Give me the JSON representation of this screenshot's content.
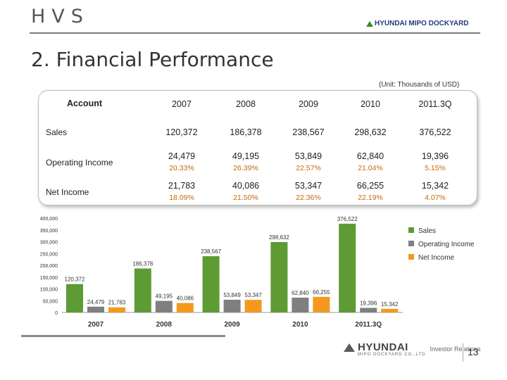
{
  "header": {
    "brand": "HVS",
    "company_logo": "HYUNDAI MIPO DOCKYARD"
  },
  "slide": {
    "title": "2. Financial Performance",
    "unit": "(Unit: Thousands of USD)",
    "page_number": "13"
  },
  "table": {
    "account_header": "Account",
    "years": [
      "2007",
      "2008",
      "2009",
      "2010",
      "2011.3Q"
    ],
    "rows": [
      {
        "label": "Sales",
        "values": [
          "120,372",
          "186,378",
          "238,567",
          "298,632",
          "376,522"
        ]
      },
      {
        "label": "Operating Income",
        "values": [
          "24,479",
          "49,195",
          "53,849",
          "62,840",
          "19,396"
        ],
        "margins": [
          "20.33%",
          "26.39%",
          "22.57%",
          "21.04%",
          "5.15%"
        ]
      },
      {
        "label": "Net Income",
        "values": [
          "21,783",
          "40,086",
          "53,347",
          "66,255",
          "15,342"
        ],
        "margins": [
          "18.09%",
          "21.50%",
          "22.36%",
          "22.19%",
          "4.07%"
        ]
      }
    ]
  },
  "chart_data": {
    "type": "bar",
    "title": "",
    "categories": [
      "2007",
      "2008",
      "2009",
      "2010",
      "2011.3Q"
    ],
    "series": [
      {
        "name": "Sales",
        "values": [
          120372,
          186378,
          238567,
          298632,
          376522
        ],
        "labels": [
          "120,372",
          "186,378",
          "238,567",
          "298,632",
          "376,522"
        ],
        "color": "#5e9b34"
      },
      {
        "name": "Operating Income",
        "values": [
          24479,
          49195,
          53849,
          62840,
          19396
        ],
        "labels": [
          "24,479",
          "49,195",
          "53,849",
          "62,840",
          "19,396"
        ],
        "color": "#7f7f7f"
      },
      {
        "name": "Net Income",
        "values": [
          21783,
          40086,
          53347,
          66255,
          15342
        ],
        "labels": [
          "21,783",
          "40,086",
          "53,347",
          "66,255",
          "15,342"
        ],
        "color": "#f39a1e"
      }
    ],
    "yticks": [
      "0",
      "50,000",
      "100,000",
      "150,000",
      "200,000",
      "250,000",
      "300,000",
      "350,000",
      "400,000"
    ],
    "ylim": [
      0,
      400000
    ],
    "xlabel": "",
    "ylabel": "",
    "legend_position": "right",
    "grid": false
  },
  "footer": {
    "brand": "HYUNDAI",
    "sub": "MIPO DOCKYARD CO.,LTD",
    "tagline": "Investor Relations"
  }
}
